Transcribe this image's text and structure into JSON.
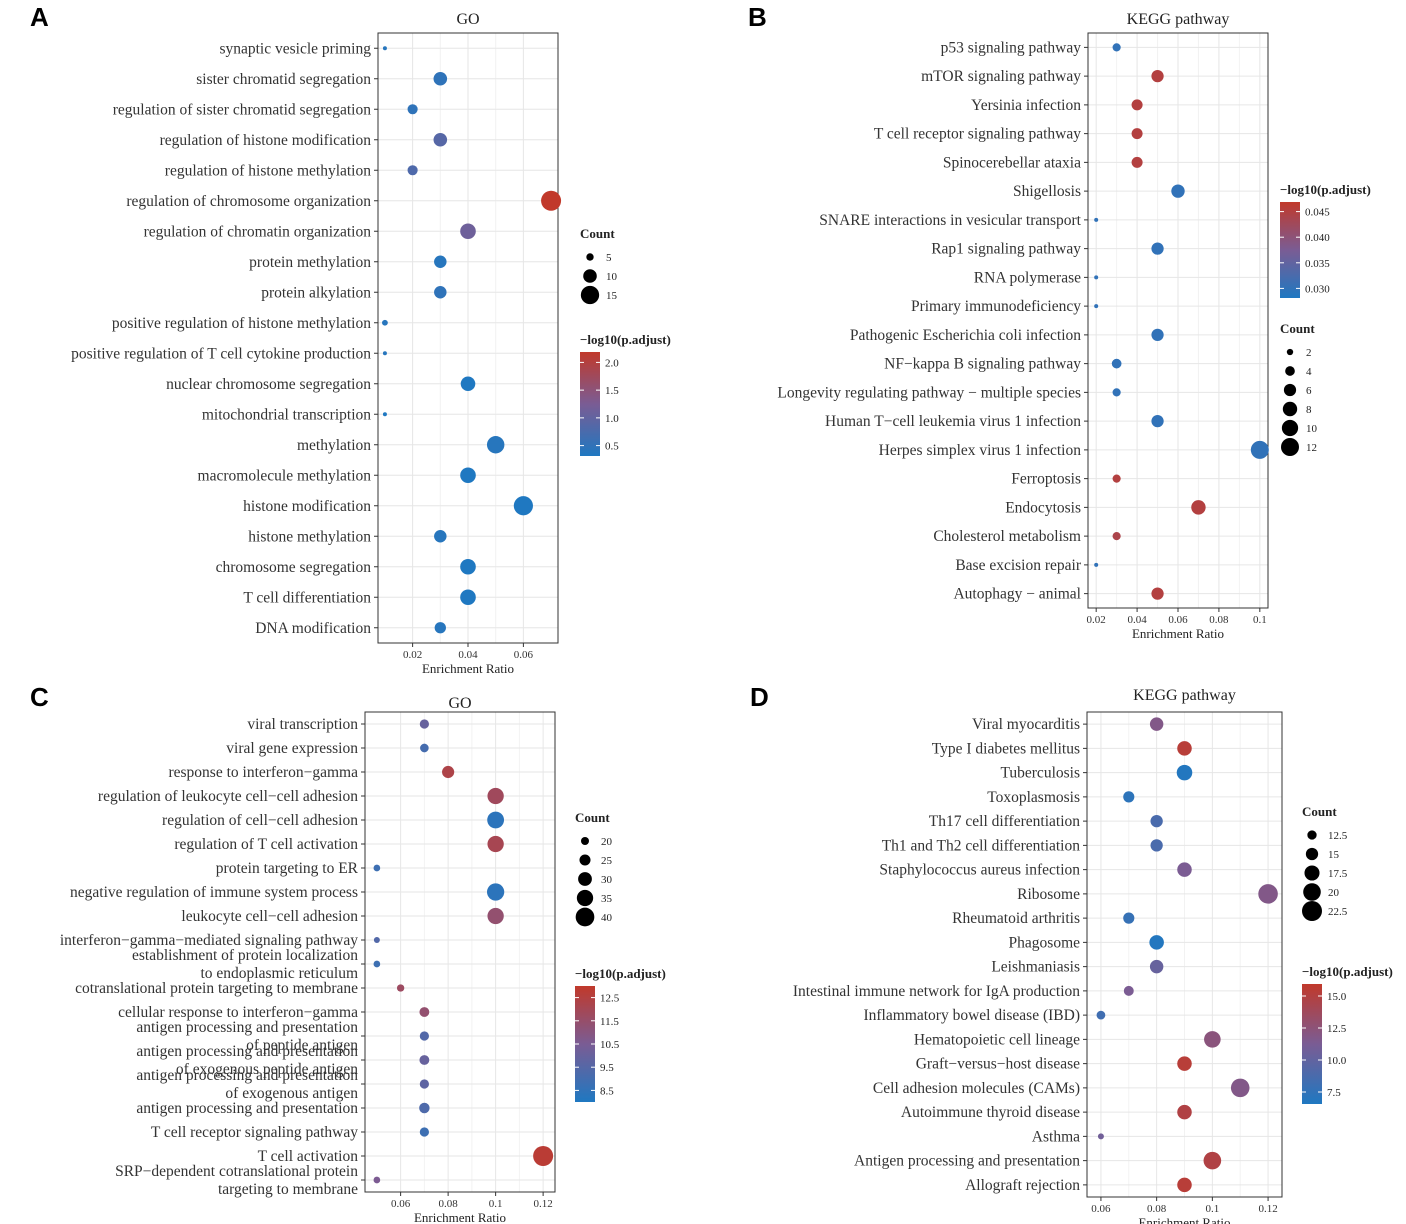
{
  "panel_labels": [
    "A",
    "B",
    "C",
    "D"
  ],
  "colors": {
    "low": "#1f78c1",
    "mid": "#7a5c94",
    "high": "#c1392b",
    "highlight_text": "#ee1111",
    "normal_text": "#333333",
    "grid": "#e6e6e6"
  },
  "chart_data": [
    {
      "type": "scatter",
      "title": "GO",
      "xlabel": "Enrichment Ratio",
      "xticks": [
        0.02,
        0.04,
        0.06
      ],
      "xlim": [
        0.0075,
        0.0725
      ],
      "categories": [
        "synaptic vesicle priming",
        "sister chromatid segregation",
        "regulation of sister chromatid segregation",
        "regulation of histone modification",
        "regulation of histone methylation",
        "regulation of chromosome organization",
        "regulation of chromatin organization",
        "protein methylation",
        "protein alkylation",
        "positive regulation of histone methylation",
        "positive regulation of T cell cytokine production",
        "nuclear chromosome segregation",
        "mitochondrial transcription",
        "methylation",
        "macromolecule methylation",
        "histone modification",
        "histone methylation",
        "chromosome segregation",
        "T cell differentiation",
        "DNA modification"
      ],
      "highlighted": [
        "regulation of histone methylation",
        "regulation of chromosome organization"
      ],
      "x": [
        0.01,
        0.03,
        0.02,
        0.03,
        0.02,
        0.07,
        0.04,
        0.03,
        0.03,
        0.01,
        0.01,
        0.04,
        0.01,
        0.05,
        0.04,
        0.06,
        0.03,
        0.04,
        0.04,
        0.03
      ],
      "count": [
        3,
        10,
        7,
        10,
        7,
        17,
        12,
        9,
        9,
        4,
        3,
        11,
        3,
        14,
        12,
        16,
        9,
        12,
        12,
        8
      ],
      "neglog10_padj": [
        0.3,
        0.4,
        0.4,
        0.9,
        0.8,
        2.5,
        1.2,
        0.3,
        0.4,
        0.3,
        0.3,
        0.2,
        0.2,
        0.3,
        0.2,
        0.2,
        0.3,
        0.2,
        0.2,
        0.3
      ],
      "size_legend": {
        "title": "Count",
        "values": [
          5,
          10,
          15
        ]
      },
      "color_legend": {
        "title": "−log10(p.adjust)",
        "ticks": [
          "2.0",
          "1.5",
          "1.0",
          "0.5"
        ],
        "range": [
          0.2,
          2.5
        ]
      }
    },
    {
      "type": "scatter",
      "title": "KEGG pathway",
      "xlabel": "Enrichment Ratio",
      "xticks": [
        0.02,
        0.04,
        0.06,
        0.08,
        0.1
      ],
      "xlim": [
        0.016,
        0.104
      ],
      "categories": [
        "p53 signaling pathway",
        "mTOR signaling pathway",
        "Yersinia infection",
        "T cell receptor signaling pathway",
        "Spinocerebellar ataxia",
        "Shigellosis",
        "SNARE interactions in vesicular transport",
        "Rap1 signaling pathway",
        "RNA polymerase",
        "Primary immunodeficiency",
        "Pathogenic Escherichia coli infection",
        "NF−kappa B signaling pathway",
        "Longevity regulating pathway − multiple species",
        "Human T−cell leukemia virus 1 infection",
        "Herpes simplex virus 1 infection",
        "Ferroptosis",
        "Endocytosis",
        "Cholesterol metabolism",
        "Base excision repair",
        "Autophagy − animal"
      ],
      "highlighted": [
        "mTOR signaling pathway",
        "Yersinia infection",
        "T cell receptor signaling pathway",
        "Spinocerebellar ataxia",
        "Ferroptosis",
        "Endocytosis",
        "Autophagy − animal"
      ],
      "x": [
        0.03,
        0.05,
        0.04,
        0.04,
        0.04,
        0.06,
        0.02,
        0.05,
        0.02,
        0.02,
        0.05,
        0.03,
        0.03,
        0.05,
        0.1,
        0.03,
        0.07,
        0.03,
        0.02,
        0.05
      ],
      "count": [
        3,
        6,
        5,
        5,
        5,
        7,
        1,
        6,
        1,
        1,
        6,
        4,
        3,
        6,
        12,
        3,
        8,
        3,
        1,
        6
      ],
      "neglog10_padj": [
        0.031,
        0.047,
        0.047,
        0.047,
        0.047,
        0.031,
        0.031,
        0.031,
        0.031,
        0.031,
        0.031,
        0.031,
        0.031,
        0.031,
        0.031,
        0.047,
        0.047,
        0.046,
        0.031,
        0.047
      ],
      "size_legend": {
        "title": "Count",
        "values": [
          2,
          4,
          6,
          8,
          10,
          12
        ]
      },
      "color_legend": {
        "title": "−log10(p.adjust)",
        "ticks": [
          "0.045",
          "0.040",
          "0.035",
          "0.030"
        ],
        "range": [
          0.029,
          0.049
        ]
      }
    },
    {
      "type": "scatter",
      "title": "GO",
      "xlabel": "Enrichment Ratio",
      "xticks": [
        0.06,
        0.08,
        0.1,
        0.12
      ],
      "xlim": [
        0.045,
        0.125
      ],
      "categories": [
        "viral transcription",
        "viral gene expression",
        "response to interferon−gamma",
        "regulation of leukocyte cell−cell adhesion",
        "regulation of cell−cell adhesion",
        "regulation of T cell activation",
        "protein targeting to ER",
        "negative regulation of immune system process",
        "leukocyte cell−cell adhesion",
        "interferon−gamma−mediated signaling pathway",
        "establishment of protein localization|to endoplasmic reticulum",
        "cotranslational protein targeting to membrane",
        "cellular response to interferon−gamma",
        "antigen processing and presentation|of peptide antigen",
        "antigen processing and presentation|of exogenous peptide antigen",
        "antigen processing and presentation|of exogenous antigen",
        "antigen processing and presentation",
        "T cell receptor signaling pathway",
        "T cell activation",
        "SRP−dependent cotranslational protein|targeting to membrane"
      ],
      "highlighted": [
        "response to interferon−gamma",
        "regulation of leukocyte cell−cell adhesion",
        "regulation of T cell activation",
        "T cell activation"
      ],
      "x": [
        0.07,
        0.07,
        0.08,
        0.1,
        0.1,
        0.1,
        0.05,
        0.1,
        0.1,
        0.05,
        0.05,
        0.06,
        0.07,
        0.07,
        0.07,
        0.07,
        0.07,
        0.07,
        0.12,
        0.05
      ],
      "count": [
        22,
        21,
        27,
        35,
        36,
        35,
        18,
        37,
        35,
        17,
        18,
        19,
        23,
        22,
        23,
        22,
        24,
        22,
        43,
        18
      ],
      "neglog10_padj": [
        10.0,
        9.2,
        12.0,
        11.6,
        8.6,
        11.8,
        9.0,
        8.6,
        11.2,
        9.5,
        9.0,
        11.5,
        11.2,
        9.5,
        10.0,
        9.8,
        9.4,
        9.0,
        12.4,
        10.5
      ],
      "size_legend": {
        "title": "Count",
        "values": [
          20,
          25,
          30,
          35,
          40
        ]
      },
      "color_legend": {
        "title": "−log10(p.adjust)",
        "ticks": [
          "12.5",
          "11.5",
          "10.5",
          "9.5",
          "8.5"
        ],
        "range": [
          8.3,
          12.6
        ]
      }
    },
    {
      "type": "scatter",
      "title": "KEGG pathway",
      "xlabel": "Enrichment Ratio",
      "xticks": [
        0.06,
        0.08,
        0.1,
        0.12
      ],
      "xlim": [
        0.055,
        0.125
      ],
      "categories": [
        "Viral myocarditis",
        "Type I diabetes mellitus",
        "Tuberculosis",
        "Toxoplasmosis",
        "Th17 cell differentiation",
        "Th1 and Th2 cell differentiation",
        "Staphylococcus aureus infection",
        "Ribosome",
        "Rheumatoid arthritis",
        "Phagosome",
        "Leishmaniasis",
        "Intestinal immune network for IgA production",
        "Inflammatory bowel disease (IBD)",
        "Hematopoietic cell lineage",
        "Graft−versus−host disease",
        "Cell adhesion molecules (CAMs)",
        "Autoimmune thyroid disease",
        "Asthma",
        "Antigen processing and presentation",
        "Allograft rejection"
      ],
      "highlighted": [
        "Type I diabetes mellitus",
        "Graft−versus−host disease",
        "Autoimmune thyroid disease",
        "Antigen processing and presentation",
        "Allograft rejection"
      ],
      "x": [
        0.08,
        0.09,
        0.09,
        0.07,
        0.08,
        0.08,
        0.09,
        0.12,
        0.07,
        0.08,
        0.08,
        0.07,
        0.06,
        0.1,
        0.09,
        0.11,
        0.09,
        0.06,
        0.1,
        0.09
      ],
      "count": [
        16,
        17,
        18,
        14,
        15,
        15,
        17,
        22,
        14,
        17,
        16,
        13,
        12,
        19,
        17,
        21,
        17,
        10,
        20,
        17
      ],
      "neglog10_padj": [
        11.0,
        14.5,
        6.0,
        6.5,
        8.0,
        8.0,
        10.5,
        11.0,
        7.0,
        6.0,
        9.5,
        10.5,
        7.5,
        11.5,
        14.5,
        11.0,
        14.0,
        10.0,
        14.0,
        14.5
      ],
      "size_legend": {
        "title": "Count",
        "values": [
          12.5,
          15.0,
          17.5,
          20.0,
          22.5
        ]
      },
      "color_legend": {
        "title": "−log10(p.adjust)",
        "ticks": [
          "15.0",
          "12.5",
          "10.0",
          "7.5"
        ],
        "range": [
          5.8,
          15.1
        ]
      }
    }
  ]
}
